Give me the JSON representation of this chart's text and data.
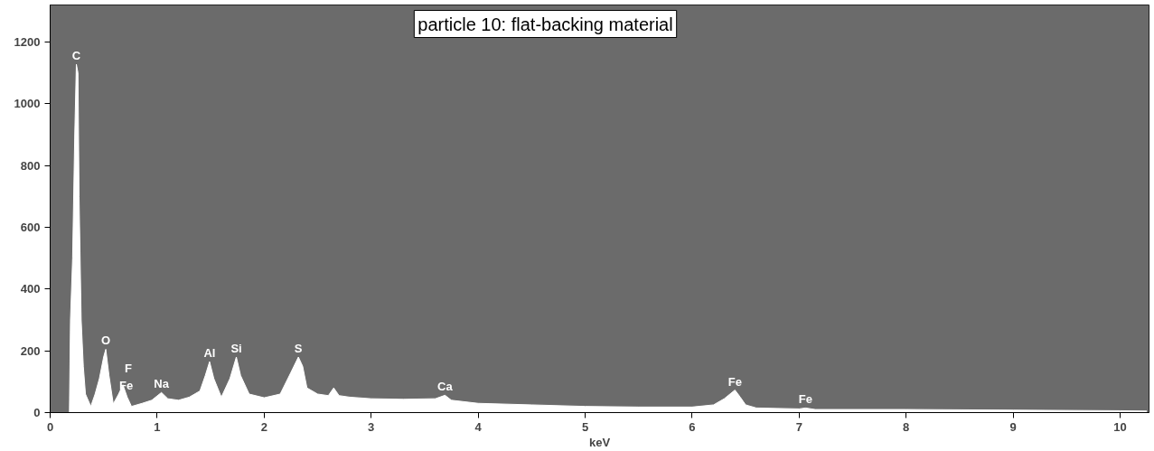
{
  "chart_data": {
    "type": "area",
    "title": "particle 10: flat-backing material",
    "xlabel": "keV",
    "x": [
      0.18,
      0.19,
      0.21,
      0.23,
      0.245,
      0.26,
      0.27,
      0.29,
      0.31,
      0.33,
      0.38,
      0.42,
      0.46,
      0.5,
      0.52,
      0.55,
      0.59,
      0.64,
      0.68,
      0.72,
      0.76,
      0.86,
      0.95,
      1.04,
      1.1,
      1.2,
      1.3,
      1.4,
      1.45,
      1.49,
      1.53,
      1.6,
      1.68,
      1.74,
      1.78,
      1.86,
      2.0,
      2.15,
      2.25,
      2.32,
      2.36,
      2.4,
      2.5,
      2.6,
      2.65,
      2.7,
      2.8,
      3.0,
      3.3,
      3.6,
      3.69,
      3.75,
      4.0,
      4.5,
      5.0,
      5.5,
      6.0,
      6.2,
      6.3,
      6.4,
      6.45,
      6.5,
      6.6,
      7.0,
      7.06,
      7.15,
      8.0,
      9.0,
      10.0,
      10.25
    ],
    "series": [
      {
        "color": "#ffffff",
        "values": [
          0,
          300,
          500,
          900,
          1128,
          1100,
          700,
          300,
          150,
          60,
          20,
          60,
          110,
          180,
          205,
          120,
          28,
          60,
          90,
          50,
          20,
          30,
          40,
          65,
          45,
          40,
          50,
          70,
          120,
          165,
          110,
          50,
          110,
          180,
          120,
          60,
          48,
          60,
          130,
          180,
          150,
          80,
          60,
          55,
          80,
          55,
          50,
          45,
          43,
          45,
          56,
          40,
          30,
          25,
          20,
          18,
          18,
          25,
          45,
          73,
          50,
          25,
          15,
          12,
          15,
          10,
          10,
          8,
          6,
          5
        ]
      }
    ],
    "xlim": [
      0,
      10.27
    ],
    "ylim": [
      0,
      1320
    ],
    "xticks": [
      0,
      1,
      2,
      3,
      4,
      5,
      6,
      7,
      8,
      9,
      10
    ],
    "yticks": [
      0,
      200,
      400,
      600,
      800,
      1000,
      1200
    ],
    "grid": false,
    "annotations": [
      {
        "text": "C",
        "x": 0.245,
        "y": 1128
      },
      {
        "text": "O",
        "x": 0.52,
        "y": 205
      },
      {
        "text": "Fe",
        "x": 0.71,
        "y": 60
      },
      {
        "text": "F",
        "x": 0.68,
        "y": 90
      },
      {
        "text": "Na",
        "x": 1.04,
        "y": 65
      },
      {
        "text": "Al",
        "x": 1.49,
        "y": 165
      },
      {
        "text": "Si",
        "x": 1.74,
        "y": 180
      },
      {
        "text": "S",
        "x": 2.32,
        "y": 180
      },
      {
        "text": "Ca",
        "x": 3.69,
        "y": 56
      },
      {
        "text": "Fe",
        "x": 6.4,
        "y": 73
      },
      {
        "text": "Fe",
        "x": 7.06,
        "y": 15
      }
    ]
  }
}
